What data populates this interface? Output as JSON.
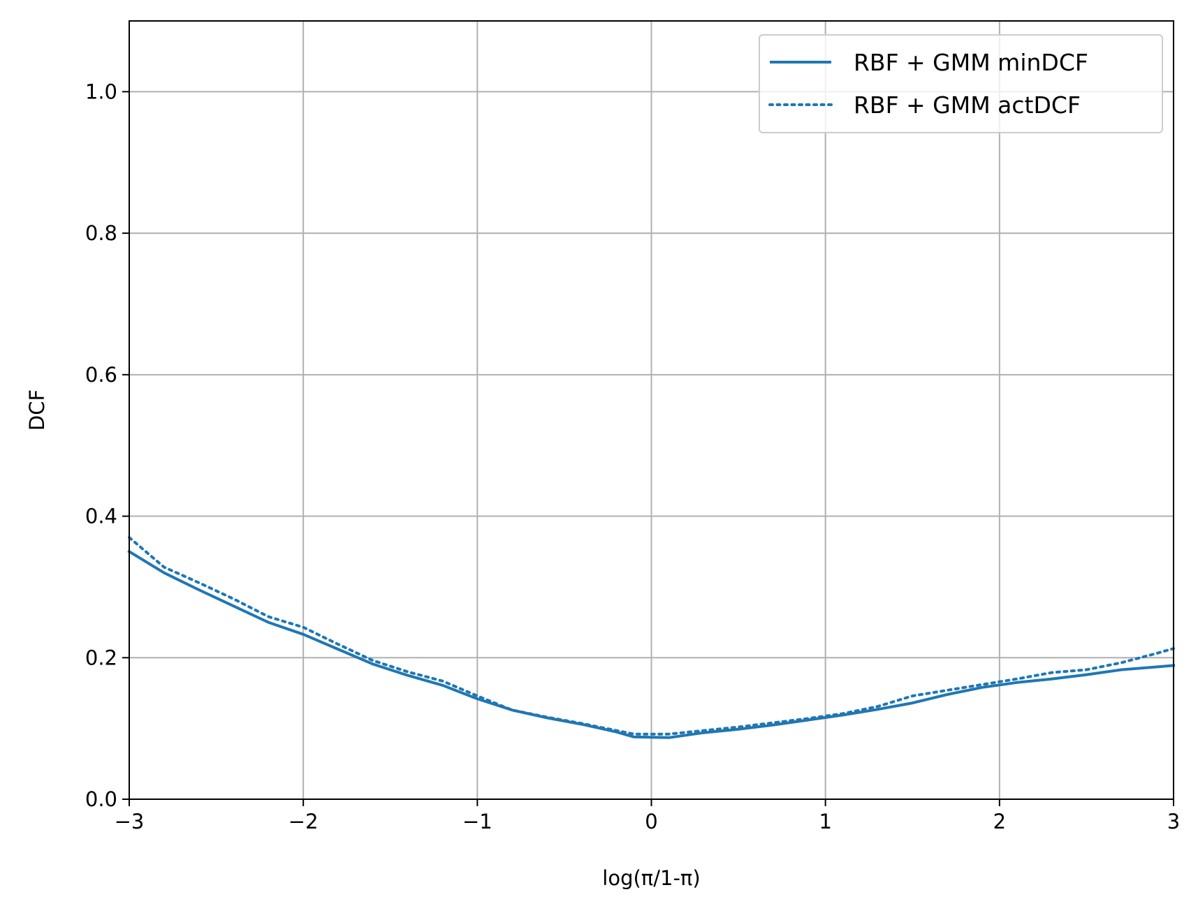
{
  "chart_data": {
    "type": "line",
    "title": "",
    "xlabel": "log(π/1-π)",
    "ylabel": "DCF",
    "xlim": [
      -3,
      3
    ],
    "ylim": [
      0,
      1.1
    ],
    "xticks": [
      -3,
      -2,
      -1,
      0,
      1,
      2,
      3
    ],
    "xtick_labels": [
      "−3",
      "−2",
      "−1",
      "0",
      "1",
      "2",
      "3"
    ],
    "yticks": [
      0,
      0.2,
      0.4,
      0.6,
      0.8,
      1.0
    ],
    "ytick_labels": [
      "0.0",
      "0.2",
      "0.4",
      "0.6",
      "0.8",
      "1.0"
    ],
    "grid": true,
    "legend_position": "top-right",
    "series": [
      {
        "name": "RBF + GMM minDCF",
        "color": "#1f77b4",
        "linestyle": "solid",
        "x": [
          -3.0,
          -2.8,
          -2.6,
          -2.4,
          -2.2,
          -2.0,
          -1.8,
          -1.6,
          -1.4,
          -1.2,
          -1.0,
          -0.8,
          -0.6,
          -0.4,
          -0.2,
          -0.1,
          0.1,
          0.3,
          0.5,
          0.7,
          0.9,
          1.1,
          1.3,
          1.5,
          1.7,
          1.9,
          2.1,
          2.3,
          2.5,
          2.7,
          2.9,
          3.0
        ],
        "y": [
          0.35,
          0.32,
          0.296,
          0.273,
          0.25,
          0.233,
          0.212,
          0.191,
          0.175,
          0.161,
          0.142,
          0.126,
          0.115,
          0.106,
          0.095,
          0.088,
          0.087,
          0.094,
          0.099,
          0.105,
          0.112,
          0.119,
          0.127,
          0.136,
          0.148,
          0.158,
          0.165,
          0.17,
          0.176,
          0.183,
          0.187,
          0.189
        ]
      },
      {
        "name": "RBF + GMM actDCF",
        "color": "#1f77b4",
        "linestyle": "dotted",
        "x": [
          -3.0,
          -2.8,
          -2.6,
          -2.4,
          -2.2,
          -2.0,
          -1.8,
          -1.6,
          -1.4,
          -1.2,
          -1.0,
          -0.8,
          -0.6,
          -0.4,
          -0.2,
          -0.1,
          0.1,
          0.3,
          0.5,
          0.7,
          0.9,
          1.1,
          1.3,
          1.5,
          1.7,
          1.9,
          2.1,
          2.3,
          2.5,
          2.7,
          2.9,
          3.0
        ],
        "y": [
          0.37,
          0.328,
          0.306,
          0.283,
          0.258,
          0.243,
          0.219,
          0.196,
          0.18,
          0.167,
          0.146,
          0.126,
          0.116,
          0.107,
          0.097,
          0.092,
          0.092,
          0.097,
          0.102,
          0.108,
          0.114,
          0.121,
          0.131,
          0.146,
          0.154,
          0.162,
          0.17,
          0.179,
          0.183,
          0.193,
          0.206,
          0.213
        ]
      }
    ]
  }
}
